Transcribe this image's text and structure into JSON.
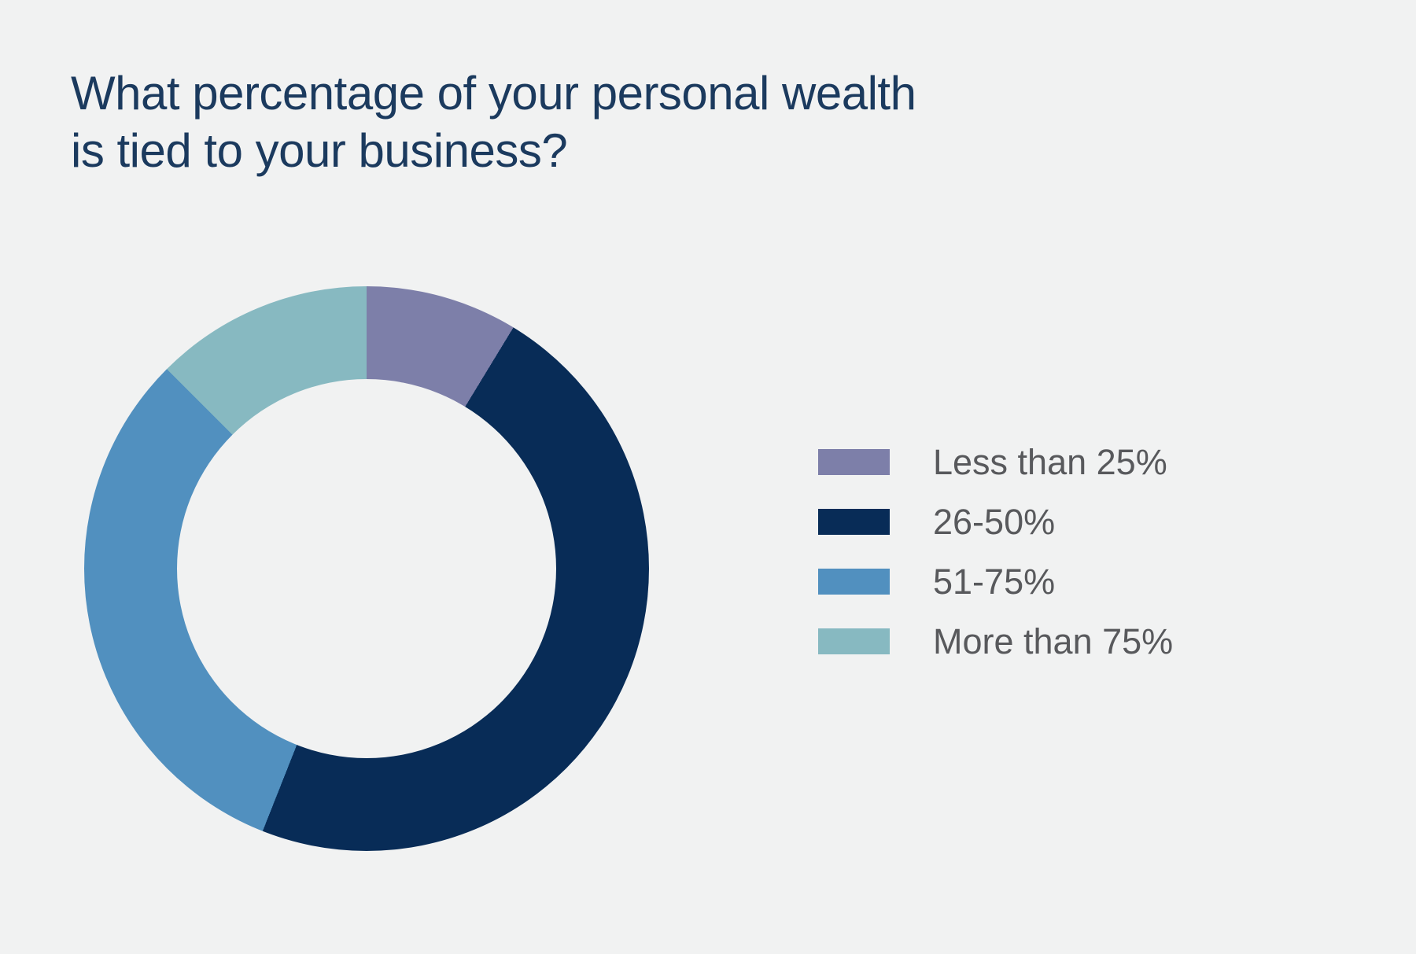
{
  "title": {
    "line1": "What percentage of your personal wealth",
    "line2": "is tied to your business?"
  },
  "colors": {
    "background": "#f1f2f2",
    "title_text": "#1b3a5e",
    "legend_text": "#58595c"
  },
  "chart_data": {
    "type": "pie",
    "subtype": "donut",
    "title": "What percentage of your personal wealth is tied to your business?",
    "categories": [
      "Less than 25%",
      "26-50%",
      "51-75%",
      "More than 75%"
    ],
    "values": [
      8.7,
      47.3,
      31.5,
      12.5
    ],
    "unit": "percent of respondents",
    "start_angle_deg": 0,
    "direction": "clockwise",
    "inner_radius_ratio": 0.67,
    "colors": [
      "#7d7fa9",
      "#082c57",
      "#5190bf",
      "#87b9c1"
    ],
    "legend_position": "right",
    "data_labels": false
  },
  "legend": {
    "items": [
      {
        "label": "Less than 25%",
        "color": "#7d7fa9"
      },
      {
        "label": "26-50%",
        "color": "#082c57"
      },
      {
        "label": "51-75%",
        "color": "#5190bf"
      },
      {
        "label": "More than 75%",
        "color": "#87b9c1"
      }
    ]
  }
}
